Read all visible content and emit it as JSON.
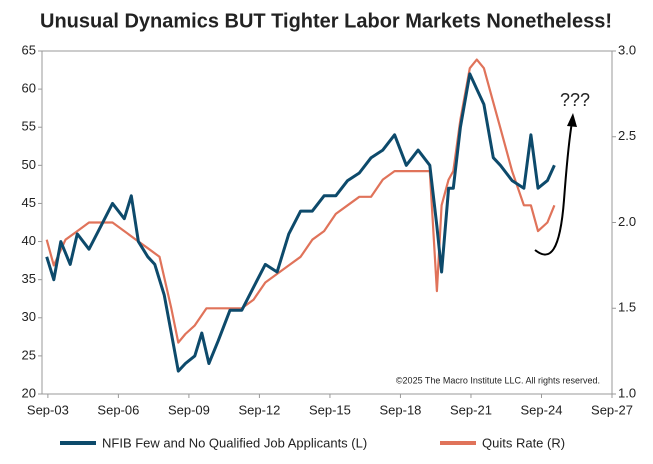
{
  "chart_data": {
    "type": "line",
    "title": "Unusual Dynamics BUT Tighter Labor Markets Nonetheless!",
    "annotations": [
      "???",
      "©2025 The Macro Institute LLC. All rights reserved."
    ],
    "xlim": [
      2003.5,
      2027.75
    ],
    "xticks": [
      {
        "value": 2003.75,
        "label": "Sep-03"
      },
      {
        "value": 2006.75,
        "label": "Sep-06"
      },
      {
        "value": 2009.75,
        "label": "Sep-09"
      },
      {
        "value": 2012.75,
        "label": "Sep-12"
      },
      {
        "value": 2015.75,
        "label": "Sep-15"
      },
      {
        "value": 2018.75,
        "label": "Sep-18"
      },
      {
        "value": 2021.75,
        "label": "Sep-21"
      },
      {
        "value": 2024.75,
        "label": "Sep-24"
      },
      {
        "value": 2027.75,
        "label": "Sep-27"
      }
    ],
    "ylim": [
      20,
      65
    ],
    "yticks": [
      20,
      25,
      30,
      35,
      40,
      45,
      50,
      55,
      60,
      65
    ],
    "y2lim": [
      1,
      3
    ],
    "y2ticks": [
      {
        "value": 1,
        "label": "1.0"
      },
      1.5,
      {
        "value": 2,
        "label": "2.0"
      },
      2.5,
      {
        "value": 3,
        "label": "3.0"
      }
    ],
    "series": [
      {
        "name": "NFIB Few and No Qualified Job Applicants (L)",
        "color": "#0d4a6b",
        "x": [
          2003.7,
          2004,
          2004.3,
          2004.7,
          2005,
          2005.5,
          2006,
          2006.5,
          2007,
          2007.3,
          2007.6,
          2008,
          2008.3,
          2008.7,
          2009,
          2009.3,
          2009.6,
          2010,
          2010.3,
          2010.6,
          2011,
          2011.5,
          2012,
          2012.5,
          2013,
          2013.5,
          2014,
          2014.5,
          2015,
          2015.5,
          2016,
          2016.5,
          2017,
          2017.5,
          2018,
          2018.5,
          2019,
          2019.5,
          2020,
          2020.3,
          2020.5,
          2020.8,
          2021,
          2021.3,
          2021.7,
          2022,
          2022.3,
          2022.7,
          2023,
          2023.5,
          2024,
          2024.3,
          2024.6,
          2025,
          2025.3
        ],
        "values": [
          38,
          35,
          40,
          37,
          41,
          39,
          42,
          45,
          43,
          46,
          40,
          38,
          37,
          33,
          28,
          23,
          24,
          25,
          28,
          24,
          27,
          31,
          31,
          34,
          37,
          36,
          41,
          44,
          44,
          46,
          46,
          48,
          49,
          51,
          52,
          54,
          50,
          52,
          50,
          42,
          36,
          47,
          47,
          55,
          62,
          60,
          58,
          51,
          50,
          48,
          47,
          54,
          47,
          48,
          50
        ]
      },
      {
        "name": "Quits Rate (R)",
        "color": "#e0735a",
        "axis": "y2",
        "x": [
          2003.7,
          2004,
          2004.5,
          2005,
          2005.5,
          2006,
          2006.5,
          2007,
          2007.5,
          2008,
          2008.5,
          2009,
          2009.3,
          2009.6,
          2010,
          2010.5,
          2011,
          2011.5,
          2012,
          2012.5,
          2013,
          2013.5,
          2014,
          2014.5,
          2015,
          2015.5,
          2016,
          2016.5,
          2017,
          2017.5,
          2018,
          2018.5,
          2019,
          2019.5,
          2020,
          2020.3,
          2020.5,
          2020.8,
          2021,
          2021.3,
          2021.7,
          2022,
          2022.3,
          2022.7,
          2023,
          2023.5,
          2024,
          2024.3,
          2024.6,
          2025,
          2025.3
        ],
        "values": [
          1.9,
          1.75,
          1.9,
          1.95,
          2.0,
          2.0,
          2.0,
          1.95,
          1.9,
          1.85,
          1.8,
          1.5,
          1.3,
          1.35,
          1.4,
          1.5,
          1.5,
          1.5,
          1.5,
          1.55,
          1.65,
          1.7,
          1.75,
          1.8,
          1.9,
          1.95,
          2.05,
          2.1,
          2.15,
          2.15,
          2.25,
          2.3,
          2.3,
          2.3,
          2.3,
          1.6,
          2.1,
          2.25,
          2.3,
          2.6,
          2.9,
          2.95,
          2.9,
          2.7,
          2.55,
          2.3,
          2.1,
          2.1,
          1.95,
          2.0,
          2.1
        ]
      }
    ]
  }
}
